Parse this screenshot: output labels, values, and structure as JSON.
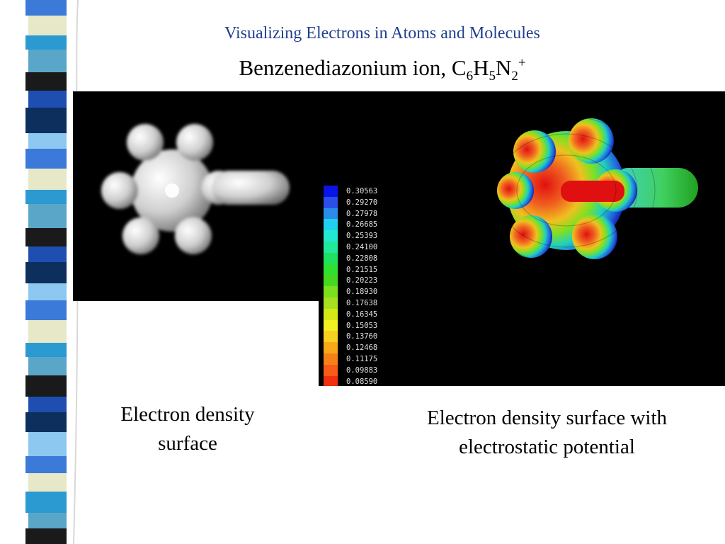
{
  "slide": {
    "heading": "Visualizing Electrons in Atoms and Molecules",
    "subheading": {
      "text": "Benzenediazonium ion, C",
      "sub1": "6",
      "h": "H",
      "sub2": "5",
      "n": "N",
      "sub3": "2",
      "sup": "+"
    },
    "caption_left": "Electron density surface",
    "caption_right": "Electron density surface with electrostatic potential"
  },
  "colorbar": {
    "labels": [
      "0.30563",
      "0.29270",
      "0.27978",
      "0.26685",
      "0.25393",
      "0.24100",
      "0.22808",
      "0.21515",
      "0.20223",
      "0.18930",
      "0.17638",
      "0.16345",
      "0.15053",
      "0.13760",
      "0.12468",
      "0.11175",
      "0.09883",
      "0.08590"
    ],
    "colors": [
      "#0a14e6",
      "#2a4ee8",
      "#2a8ce8",
      "#20d0f0",
      "#22e8d0",
      "#22e89a",
      "#20e060",
      "#30e030",
      "#46d820",
      "#7ae020",
      "#a6e020",
      "#d4e818",
      "#f2f020",
      "#f8d020",
      "#f8a818",
      "#f88018",
      "#f85a18",
      "#f03010"
    ]
  },
  "decor_colors": [
    "#3b7ad8",
    "#5aa6c8",
    "#0d2f5e",
    "#e6e8c8",
    "#1a1a1a",
    "#8cc8f0",
    "#2a9ad0",
    "#1e4fb0"
  ]
}
